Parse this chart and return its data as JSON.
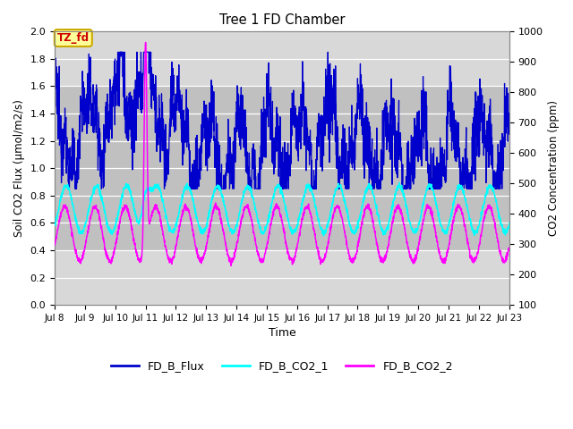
{
  "title": "Tree 1 FD Chamber",
  "xlabel": "Time",
  "ylabel_left": "Soil CO2 Flux (μmol/m2/s)",
  "ylabel_right": "CO2 Concentration (ppm)",
  "ylim_left": [
    0.0,
    2.0
  ],
  "ylim_right": [
    100,
    1000
  ],
  "flux_color": "#0000cc",
  "co2_1_color": "#00ffff",
  "co2_2_color": "#ff00ff",
  "bg_outer": "#d8d8d8",
  "bg_inner_band": "#c8c8c8",
  "annotation_text": "TZ_fd",
  "annotation_bg": "#ffff99",
  "annotation_border": "#ccaa00",
  "annotation_text_color": "#cc0000",
  "legend_labels": [
    "FD_B_Flux",
    "FD_B_CO2_1",
    "FD_B_CO2_2"
  ],
  "yticks_left": [
    0.0,
    0.2,
    0.4,
    0.6,
    0.8,
    1.0,
    1.2,
    1.4,
    1.6,
    1.8,
    2.0
  ],
  "yticks_right": [
    100,
    200,
    300,
    400,
    500,
    600,
    700,
    800,
    900,
    1000
  ],
  "xtick_labels": [
    "Jul 8",
    "Jul 9",
    "Jul 10",
    "Jul 11",
    "Jul 12",
    "Jul 13",
    "Jul 14",
    "Jul 15",
    "Jul 16",
    "Jul 17",
    "Jul 18",
    "Jul 19",
    "Jul 20",
    "Jul 21",
    "Jul 22",
    "Jul 23"
  ]
}
